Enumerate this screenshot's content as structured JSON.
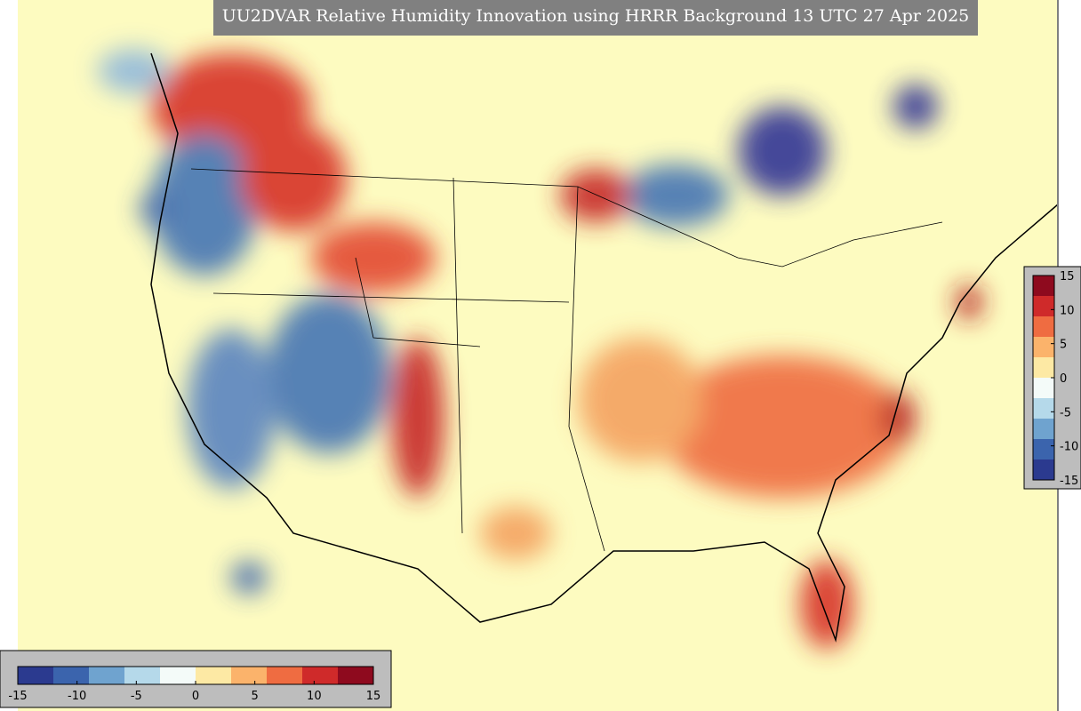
{
  "title": "UU2DVAR Relative Humidity Innovation using HRRR Background 13 UTC 27 Apr 2025",
  "colorbar": {
    "range": [
      -15,
      15
    ],
    "ticks": [
      -15,
      -10,
      -5,
      0,
      5,
      10,
      15
    ],
    "colormap": [
      "#2b3a8f",
      "#3b64ad",
      "#6fa3cf",
      "#b5d9ea",
      "#f4fbf9",
      "#fde9a4",
      "#fbb36b",
      "#ef6c41",
      "#cf2a2a",
      "#8e0a1e"
    ]
  }
}
